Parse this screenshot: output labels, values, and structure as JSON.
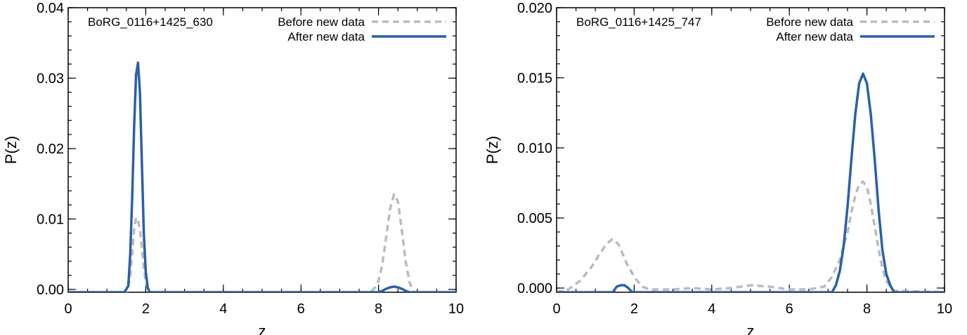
{
  "chart_data": [
    {
      "type": "line",
      "title": "",
      "xlabel": "z",
      "ylabel": "P(z)",
      "xlim": [
        0,
        10
      ],
      "ylim": [
        -0.0004,
        0.04
      ],
      "xticks": [
        0,
        2,
        4,
        6,
        8,
        10
      ],
      "xtick_labels": [
        "0",
        "2",
        "4",
        "6",
        "8",
        "10"
      ],
      "xminor_step": 0.5,
      "yticks": [
        0,
        0.01,
        0.02,
        0.03,
        0.04
      ],
      "ytick_labels": [
        "0.00",
        "0.01",
        "0.02",
        "0.03",
        "0.04"
      ],
      "yminor_step": 0.002,
      "grid": false,
      "legend_position": "top-right",
      "annotation": "BoRG_0116+1425_630",
      "series": [
        {
          "name": "Before new data",
          "color": "#bbbbbb",
          "dash": "dashed",
          "x": [
            0,
            1.4,
            1.5,
            1.55,
            1.6,
            1.65,
            1.7,
            1.75,
            1.8,
            1.85,
            1.9,
            1.95,
            2.0,
            2.05,
            2.1,
            2.2,
            7.8,
            7.9,
            8.0,
            8.1,
            8.2,
            8.3,
            8.4,
            8.5,
            8.6,
            8.7,
            8.8,
            8.9,
            10
          ],
          "y": [
            -0.0004,
            -0.0004,
            -0.0003,
            0.0005,
            0.002,
            0.005,
            0.0085,
            0.0102,
            0.0098,
            0.0085,
            0.006,
            0.003,
            0.001,
            0.0002,
            -0.0004,
            -0.0004,
            -0.0004,
            0.0002,
            0.0012,
            0.0036,
            0.0075,
            0.0115,
            0.0135,
            0.0125,
            0.0085,
            0.004,
            0.001,
            -0.0004,
            -0.0004
          ]
        },
        {
          "name": "After new data",
          "color": "#2b5fa8",
          "dash": "solid",
          "x": [
            0,
            1.45,
            1.55,
            1.6,
            1.65,
            1.7,
            1.75,
            1.8,
            1.85,
            1.9,
            1.95,
            2.0,
            2.05,
            2.1,
            2.2,
            8.0,
            8.1,
            8.2,
            8.3,
            8.4,
            8.5,
            8.6,
            8.7,
            8.8,
            10
          ],
          "y": [
            -0.0004,
            -0.0004,
            0.0005,
            0.005,
            0.013,
            0.023,
            0.0305,
            0.0322,
            0.028,
            0.018,
            0.008,
            0.0025,
            0.0003,
            -0.0004,
            -0.0004,
            -0.0004,
            -0.0002,
            0.0001,
            0.0003,
            0.0004,
            0.0003,
            0.0001,
            -0.0002,
            -0.0004,
            -0.0004
          ]
        }
      ]
    },
    {
      "type": "line",
      "title": "",
      "xlabel": "z",
      "ylabel": "P(z)",
      "xlim": [
        0,
        10
      ],
      "ylim": [
        -0.0003,
        0.02
      ],
      "xticks": [
        0,
        2,
        4,
        6,
        8,
        10
      ],
      "xtick_labels": [
        "0",
        "2",
        "4",
        "6",
        "8",
        "10"
      ],
      "xminor_step": 0.5,
      "yticks": [
        0,
        0.005,
        0.01,
        0.015,
        0.02
      ],
      "ytick_labels": [
        "0.000",
        "0.005",
        "0.010",
        "0.015",
        "0.020"
      ],
      "yminor_step": 0.001,
      "grid": false,
      "legend_position": "top-right",
      "annotation": "BoRG_0116+1425_747",
      "series": [
        {
          "name": "Before new data",
          "color": "#bbbbbb",
          "dash": "dashed",
          "x": [
            0,
            0.3,
            0.6,
            0.9,
            1.1,
            1.3,
            1.45,
            1.6,
            1.8,
            2.0,
            2.2,
            2.4,
            3.0,
            3.5,
            4.0,
            4.5,
            5.0,
            5.5,
            6.0,
            6.5,
            6.9,
            7.1,
            7.3,
            7.5,
            7.6,
            7.7,
            7.8,
            7.9,
            8.0,
            8.1,
            8.2,
            8.3,
            8.4,
            8.5,
            8.7,
            10
          ],
          "y": [
            -0.0003,
            -0.0001,
            0.0005,
            0.0015,
            0.0024,
            0.0032,
            0.0035,
            0.0031,
            0.0018,
            0.0008,
            0.0001,
            -0.0001,
            -0.0001,
            0.0,
            -0.0001,
            0.0,
            0.0002,
            0.0001,
            -0.0001,
            -0.0001,
            0.0001,
            0.0008,
            0.002,
            0.004,
            0.0054,
            0.0066,
            0.0074,
            0.0076,
            0.0072,
            0.006,
            0.0044,
            0.0028,
            0.0014,
            0.0005,
            -0.0002,
            -0.0003
          ]
        },
        {
          "name": "After new data",
          "color": "#2b5fa8",
          "dash": "solid",
          "x": [
            0,
            1.45,
            1.55,
            1.65,
            1.75,
            1.85,
            1.95,
            7.1,
            7.2,
            7.3,
            7.4,
            7.5,
            7.6,
            7.7,
            7.8,
            7.9,
            8.0,
            8.1,
            8.2,
            8.3,
            8.4,
            8.5,
            8.6,
            8.7,
            10
          ],
          "y": [
            -0.0003,
            -0.0003,
            0.0001,
            0.0002,
            0.0002,
            0.0,
            -0.0003,
            -0.0003,
            0.0002,
            0.0012,
            0.003,
            0.0058,
            0.0092,
            0.0124,
            0.0146,
            0.0153,
            0.0146,
            0.0124,
            0.0092,
            0.0056,
            0.0027,
            0.001,
            0.0002,
            -0.0003,
            -0.0003
          ]
        }
      ]
    }
  ]
}
